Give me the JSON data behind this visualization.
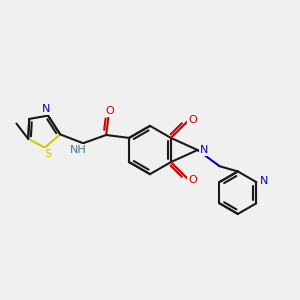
{
  "background_color": "#f0f0f0",
  "bond_color": "#1a1a1a",
  "n_color": "#0000cc",
  "o_color": "#cc0000",
  "s_color": "#cccc00",
  "nh_color": "#4a7a8a",
  "line_width": 1.5,
  "figsize": [
    3.0,
    3.0
  ],
  "dpi": 100,
  "xlim": [
    0,
    10
  ],
  "ylim": [
    0,
    10
  ]
}
